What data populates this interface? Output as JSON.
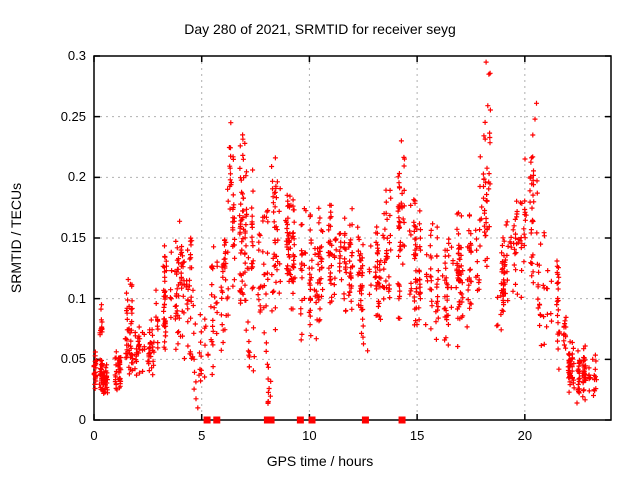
{
  "chart_data": {
    "type": "scatter",
    "title": "Day 280 of 2021, SRMTID for receiver seyg",
    "xlabel": "GPS time / hours",
    "ylabel": "SRMTID / TECUs",
    "xlim": [
      0,
      24
    ],
    "ylim": [
      0,
      0.3
    ],
    "xticks": [
      0,
      5,
      10,
      15,
      20
    ],
    "xtick_labels": [
      "0",
      "5",
      "10",
      "15",
      "20"
    ],
    "yticks": [
      0,
      0.05,
      0.1,
      0.15,
      0.2,
      0.25,
      0.3
    ],
    "ytick_labels": [
      "0",
      "0.05",
      "0.1",
      "0.15",
      "0.2",
      "0.25",
      "0.3"
    ],
    "grid": true,
    "grid_style": "dashed",
    "grid_color": "#b0b0b0",
    "frame_color": "#000000",
    "legend": "none",
    "series": [
      {
        "name": "SRMTID",
        "marker": "plus",
        "marker_size": 5,
        "color": "#ff0000",
        "density_envelope": [
          [
            0.0,
            0.35,
            0.025,
            0.06,
            32
          ],
          [
            0.1,
            0.45,
            0.05,
            0.095,
            12
          ],
          [
            0.3,
            0.85,
            0.02,
            0.052,
            48
          ],
          [
            0.85,
            1.35,
            0.022,
            0.062,
            40
          ],
          [
            1.3,
            1.7,
            0.03,
            0.1,
            24
          ],
          [
            1.5,
            1.95,
            0.04,
            0.138,
            26
          ],
          [
            1.95,
            2.45,
            0.03,
            0.085,
            30
          ],
          [
            2.45,
            2.95,
            0.035,
            0.092,
            30
          ],
          [
            2.9,
            3.3,
            0.05,
            0.122,
            26
          ],
          [
            3.1,
            3.55,
            0.06,
            0.155,
            24
          ],
          [
            3.55,
            4.0,
            0.05,
            0.148,
            34
          ],
          [
            4.0,
            4.5,
            0.045,
            0.165,
            36
          ],
          [
            4.35,
            4.75,
            0.03,
            0.175,
            20
          ],
          [
            4.6,
            5.05,
            0.008,
            0.09,
            18
          ],
          [
            5.05,
            5.6,
            0.02,
            0.1,
            14
          ],
          [
            5.5,
            6.05,
            0.05,
            0.168,
            30
          ],
          [
            6.0,
            6.55,
            0.07,
            0.2,
            36
          ],
          [
            6.2,
            6.55,
            0.15,
            0.245,
            16
          ],
          [
            6.55,
            7.05,
            0.09,
            0.235,
            40
          ],
          [
            7.0,
            7.55,
            0.07,
            0.21,
            40
          ],
          [
            7.2,
            7.65,
            0.03,
            0.08,
            10
          ],
          [
            7.5,
            8.05,
            0.05,
            0.19,
            34
          ],
          [
            7.9,
            8.25,
            0.012,
            0.06,
            10
          ],
          [
            8.1,
            8.6,
            0.07,
            0.215,
            36
          ],
          [
            8.6,
            9.1,
            0.09,
            0.2,
            36
          ],
          [
            9.1,
            9.6,
            0.08,
            0.19,
            34
          ],
          [
            9.5,
            9.85,
            0.065,
            0.185,
            20
          ],
          [
            9.85,
            10.35,
            0.065,
            0.175,
            30
          ],
          [
            10.35,
            10.85,
            0.07,
            0.175,
            34
          ],
          [
            10.85,
            11.35,
            0.09,
            0.178,
            36
          ],
          [
            11.35,
            11.85,
            0.08,
            0.172,
            34
          ],
          [
            11.85,
            12.35,
            0.08,
            0.175,
            36
          ],
          [
            12.35,
            12.85,
            0.055,
            0.165,
            30
          ],
          [
            12.85,
            13.35,
            0.08,
            0.165,
            34
          ],
          [
            13.35,
            13.85,
            0.08,
            0.19,
            34
          ],
          [
            13.85,
            14.3,
            0.08,
            0.21,
            30
          ],
          [
            14.1,
            14.45,
            0.12,
            0.232,
            14
          ],
          [
            14.45,
            14.95,
            0.07,
            0.188,
            30
          ],
          [
            14.95,
            15.45,
            0.07,
            0.185,
            32
          ],
          [
            15.45,
            15.95,
            0.06,
            0.172,
            32
          ],
          [
            15.95,
            16.45,
            0.055,
            0.162,
            30
          ],
          [
            16.45,
            16.95,
            0.06,
            0.18,
            32
          ],
          [
            16.95,
            17.45,
            0.065,
            0.172,
            32
          ],
          [
            17.45,
            17.95,
            0.08,
            0.188,
            30
          ],
          [
            17.95,
            18.25,
            0.1,
            0.225,
            20
          ],
          [
            18.05,
            18.45,
            0.13,
            0.295,
            22
          ],
          [
            18.45,
            19.0,
            0.07,
            0.152,
            28
          ],
          [
            19.0,
            19.5,
            0.08,
            0.172,
            30
          ],
          [
            19.5,
            20.0,
            0.1,
            0.188,
            32
          ],
          [
            20.0,
            20.6,
            0.11,
            0.252,
            36
          ],
          [
            20.6,
            21.1,
            0.05,
            0.155,
            24
          ],
          [
            21.05,
            21.55,
            0.055,
            0.135,
            20
          ],
          [
            21.5,
            22.0,
            0.04,
            0.1,
            20
          ],
          [
            22.0,
            22.4,
            0.02,
            0.07,
            42
          ],
          [
            22.4,
            22.9,
            0.015,
            0.062,
            55
          ],
          [
            22.9,
            23.3,
            0.018,
            0.055,
            18
          ]
        ],
        "outliers": [
          [
            0.35,
            0.095
          ],
          [
            4.82,
            0.01
          ],
          [
            6.35,
            0.245
          ],
          [
            6.9,
            0.235
          ],
          [
            7.0,
            0.228
          ],
          [
            8.42,
            0.216
          ],
          [
            9.62,
            0.066
          ],
          [
            10.32,
            0.067
          ],
          [
            12.7,
            0.057
          ],
          [
            14.27,
            0.23
          ],
          [
            18.2,
            0.295
          ],
          [
            18.33,
            0.285
          ],
          [
            18.28,
            0.259
          ],
          [
            20.47,
            0.248
          ],
          [
            20.54,
            0.261
          ],
          [
            22.42,
            0.014
          ],
          [
            23.15,
            0.05
          ]
        ]
      }
    ],
    "baseline_markers": {
      "marker": "square",
      "color": "#ff0000",
      "size": 7,
      "hours": [
        5.25,
        5.7,
        8.05,
        8.22,
        9.58,
        10.12,
        12.6,
        14.3
      ]
    }
  }
}
